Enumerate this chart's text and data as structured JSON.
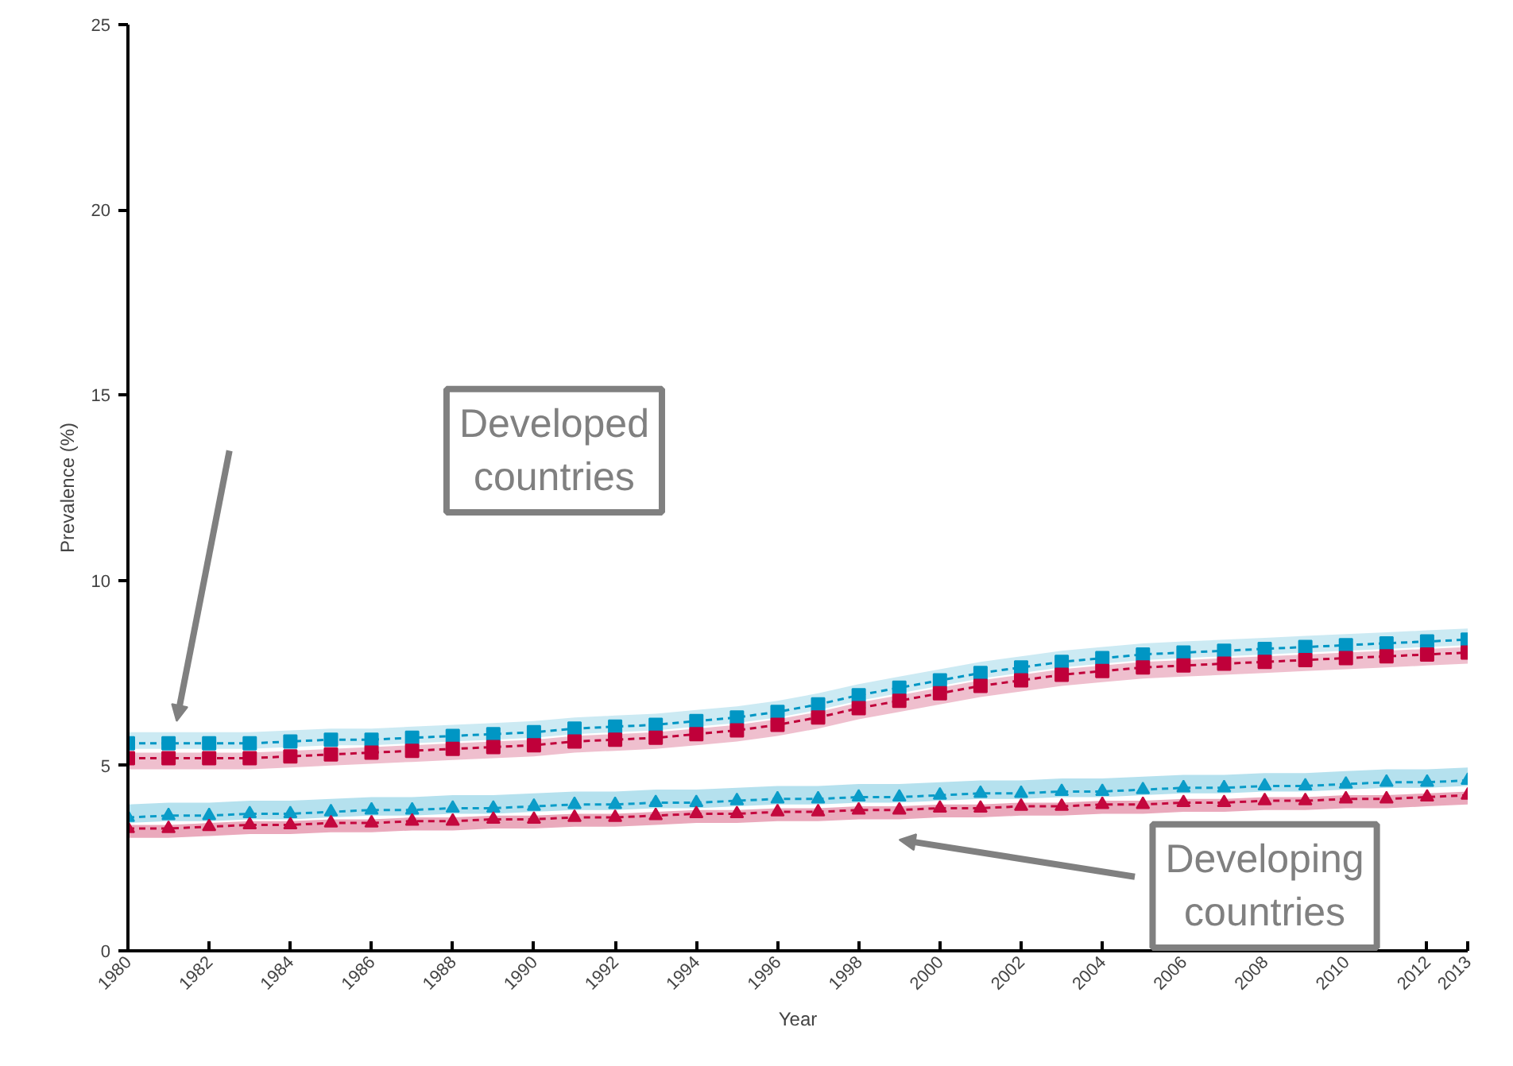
{
  "chart_data": {
    "type": "line",
    "xlabel": "Year",
    "ylabel": "Prevalence (%)",
    "x": [
      1980,
      1981,
      1982,
      1983,
      1984,
      1985,
      1986,
      1987,
      1988,
      1989,
      1990,
      1991,
      1992,
      1993,
      1994,
      1995,
      1996,
      1997,
      1998,
      1999,
      2000,
      2001,
      2002,
      2003,
      2004,
      2005,
      2006,
      2007,
      2008,
      2009,
      2010,
      2011,
      2012,
      2013
    ],
    "xlim": [
      1980,
      2013
    ],
    "xticks": [
      1980,
      1982,
      1984,
      1986,
      1988,
      1990,
      1992,
      1994,
      1996,
      1998,
      2000,
      2002,
      2004,
      2006,
      2008,
      2010,
      2012,
      2013
    ],
    "ylim": [
      0,
      25
    ],
    "yticks": [
      0,
      5,
      10,
      15,
      20,
      25
    ],
    "grid": false,
    "line_style": "dashed",
    "series": [
      {
        "color": "#0096c4",
        "marker": "square",
        "values": [
          5.6,
          5.6,
          5.6,
          5.6,
          5.65,
          5.7,
          5.7,
          5.75,
          5.8,
          5.85,
          5.9,
          6.0,
          6.05,
          6.1,
          6.2,
          6.3,
          6.45,
          6.65,
          6.9,
          7.1,
          7.3,
          7.5,
          7.65,
          7.8,
          7.9,
          8.0,
          8.05,
          8.1,
          8.15,
          8.2,
          8.25,
          8.3,
          8.35,
          8.4
        ],
        "lower": [
          5.45,
          5.45,
          5.45,
          5.45,
          5.5,
          5.55,
          5.55,
          5.6,
          5.65,
          5.7,
          5.75,
          5.85,
          5.9,
          5.95,
          6.05,
          6.15,
          6.3,
          6.5,
          6.75,
          6.95,
          7.15,
          7.35,
          7.5,
          7.65,
          7.75,
          7.85,
          7.9,
          7.95,
          8.0,
          8.05,
          8.1,
          8.15,
          8.2,
          8.25
        ],
        "upper": [
          5.9,
          5.9,
          5.9,
          5.9,
          5.95,
          6.0,
          6.0,
          6.05,
          6.1,
          6.15,
          6.2,
          6.3,
          6.35,
          6.4,
          6.5,
          6.6,
          6.75,
          6.95,
          7.2,
          7.4,
          7.6,
          7.8,
          7.95,
          8.1,
          8.2,
          8.3,
          8.35,
          8.4,
          8.45,
          8.5,
          8.55,
          8.6,
          8.65,
          8.7
        ]
      },
      {
        "color": "#c0003a",
        "marker": "square",
        "values": [
          5.2,
          5.2,
          5.2,
          5.2,
          5.25,
          5.3,
          5.35,
          5.4,
          5.45,
          5.5,
          5.55,
          5.65,
          5.7,
          5.75,
          5.85,
          5.95,
          6.1,
          6.3,
          6.55,
          6.75,
          6.95,
          7.15,
          7.3,
          7.45,
          7.55,
          7.65,
          7.7,
          7.75,
          7.8,
          7.85,
          7.9,
          7.95,
          8.0,
          8.05
        ],
        "lower": [
          4.9,
          4.9,
          4.9,
          4.9,
          4.95,
          5.0,
          5.05,
          5.1,
          5.15,
          5.2,
          5.25,
          5.35,
          5.4,
          5.45,
          5.55,
          5.65,
          5.8,
          6.0,
          6.25,
          6.45,
          6.65,
          6.85,
          7.0,
          7.15,
          7.25,
          7.35,
          7.4,
          7.45,
          7.5,
          7.55,
          7.6,
          7.65,
          7.7,
          7.75
        ],
        "upper": [
          5.35,
          5.35,
          5.35,
          5.35,
          5.4,
          5.45,
          5.5,
          5.55,
          5.6,
          5.65,
          5.7,
          5.8,
          5.85,
          5.9,
          6.0,
          6.1,
          6.25,
          6.45,
          6.7,
          6.9,
          7.1,
          7.3,
          7.45,
          7.6,
          7.7,
          7.8,
          7.85,
          7.9,
          7.95,
          8.0,
          8.05,
          8.1,
          8.15,
          8.2
        ]
      },
      {
        "color": "#0a9cc8",
        "marker": "triangle",
        "values": [
          3.6,
          3.65,
          3.65,
          3.7,
          3.7,
          3.75,
          3.8,
          3.8,
          3.85,
          3.85,
          3.9,
          3.95,
          3.95,
          4.0,
          4.0,
          4.05,
          4.1,
          4.1,
          4.15,
          4.15,
          4.2,
          4.25,
          4.25,
          4.3,
          4.3,
          4.35,
          4.4,
          4.4,
          4.45,
          4.45,
          4.5,
          4.55,
          4.55,
          4.6
        ],
        "lower": [
          3.45,
          3.5,
          3.5,
          3.55,
          3.55,
          3.6,
          3.65,
          3.65,
          3.7,
          3.7,
          3.75,
          3.8,
          3.8,
          3.85,
          3.85,
          3.9,
          3.95,
          3.95,
          4.0,
          4.0,
          4.05,
          4.1,
          4.1,
          4.15,
          4.15,
          4.2,
          4.25,
          4.25,
          4.3,
          4.3,
          4.35,
          4.4,
          4.4,
          4.45
        ],
        "upper": [
          3.95,
          4.0,
          4.0,
          4.05,
          4.05,
          4.1,
          4.15,
          4.15,
          4.2,
          4.2,
          4.25,
          4.3,
          4.3,
          4.35,
          4.35,
          4.4,
          4.45,
          4.45,
          4.5,
          4.5,
          4.55,
          4.6,
          4.6,
          4.65,
          4.65,
          4.7,
          4.75,
          4.75,
          4.8,
          4.8,
          4.85,
          4.9,
          4.9,
          4.95
        ]
      },
      {
        "color": "#c4083e",
        "marker": "triangle",
        "values": [
          3.3,
          3.3,
          3.35,
          3.4,
          3.4,
          3.45,
          3.45,
          3.5,
          3.5,
          3.55,
          3.55,
          3.6,
          3.6,
          3.65,
          3.7,
          3.7,
          3.75,
          3.75,
          3.8,
          3.8,
          3.85,
          3.85,
          3.9,
          3.9,
          3.95,
          3.95,
          4.0,
          4.0,
          4.05,
          4.05,
          4.1,
          4.1,
          4.15,
          4.2
        ],
        "lower": [
          3.05,
          3.05,
          3.1,
          3.15,
          3.15,
          3.2,
          3.2,
          3.25,
          3.25,
          3.3,
          3.3,
          3.35,
          3.35,
          3.4,
          3.45,
          3.45,
          3.5,
          3.5,
          3.55,
          3.55,
          3.6,
          3.6,
          3.65,
          3.65,
          3.7,
          3.7,
          3.75,
          3.75,
          3.8,
          3.8,
          3.85,
          3.85,
          3.9,
          3.95
        ],
        "upper": [
          3.4,
          3.4,
          3.45,
          3.5,
          3.5,
          3.55,
          3.55,
          3.6,
          3.6,
          3.65,
          3.65,
          3.7,
          3.7,
          3.75,
          3.8,
          3.8,
          3.85,
          3.85,
          3.9,
          3.9,
          3.95,
          3.95,
          4.0,
          4.0,
          4.05,
          4.05,
          4.1,
          4.1,
          4.15,
          4.15,
          4.2,
          4.2,
          4.25,
          4.3
        ]
      }
    ],
    "annotations": [
      "Developed countries",
      "Developing countries"
    ]
  }
}
